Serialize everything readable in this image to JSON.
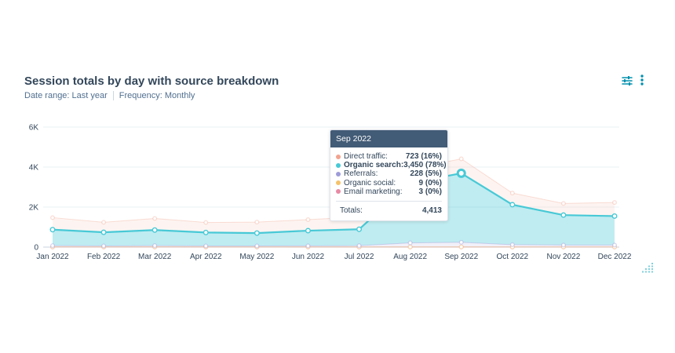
{
  "header": {
    "title": "Session totals by day with source breakdown",
    "date_range": "Date range: Last year",
    "frequency": "Frequency: Monthly"
  },
  "toolbar": {
    "filter_icon": "sliders-icon",
    "menu_icon": "more-vertical-icon",
    "accent": "#0091ae"
  },
  "chart_data": {
    "type": "area",
    "categories": [
      "Jan 2022",
      "Feb 2022",
      "Mar 2022",
      "Apr 2022",
      "May 2022",
      "Jun 2022",
      "Jul 2022",
      "Aug 2022",
      "Sep 2022",
      "Oct 2022",
      "Nov 2022",
      "Dec 2022"
    ],
    "ylim": [
      0,
      6000
    ],
    "yticks": [
      0,
      2000,
      4000,
      6000
    ],
    "ytick_labels": [
      "0",
      "2K",
      "4K",
      "6K"
    ],
    "grid": true,
    "series": [
      {
        "name": "Direct traffic",
        "color": "#f2a38f",
        "values": [
          600,
          500,
          580,
          500,
          550,
          550,
          620,
          700,
          723,
          580,
          580,
          680
        ]
      },
      {
        "name": "Organic search",
        "color": "#48c9d6",
        "values": [
          800,
          680,
          780,
          670,
          640,
          760,
          820,
          3000,
          3450,
          2000,
          1500,
          1450
        ]
      },
      {
        "name": "Referrals",
        "color": "#9e9bd9",
        "values": [
          60,
          50,
          60,
          50,
          50,
          50,
          60,
          200,
          228,
          110,
          90,
          90
        ]
      },
      {
        "name": "Organic social",
        "color": "#f5c26b",
        "values": [
          10,
          8,
          10,
          8,
          8,
          9,
          9,
          9,
          9,
          8,
          8,
          8
        ]
      },
      {
        "name": "Email marketing",
        "color": "#e88aa5",
        "values": [
          3,
          3,
          3,
          3,
          3,
          3,
          3,
          3,
          3,
          3,
          3,
          3
        ]
      }
    ],
    "tooltip": {
      "title": "Sep 2022",
      "rows": [
        {
          "label": "Direct traffic:",
          "value": "723 (16%)",
          "color": "#f2a38f",
          "bold": false
        },
        {
          "label": "Organic search:",
          "value": "3,450 (78%)",
          "color": "#48c9d6",
          "bold": true
        },
        {
          "label": "Referrals:",
          "value": "228 (5%)",
          "color": "#9e9bd9",
          "bold": false
        },
        {
          "label": "Organic social:",
          "value": "9 (0%)",
          "color": "#f5c26b",
          "bold": false
        },
        {
          "label": "Email marketing:",
          "value": "3 (0%)",
          "color": "#e88aa5",
          "bold": false
        }
      ],
      "total_label": "Totals:",
      "total_value": "4,413"
    }
  }
}
